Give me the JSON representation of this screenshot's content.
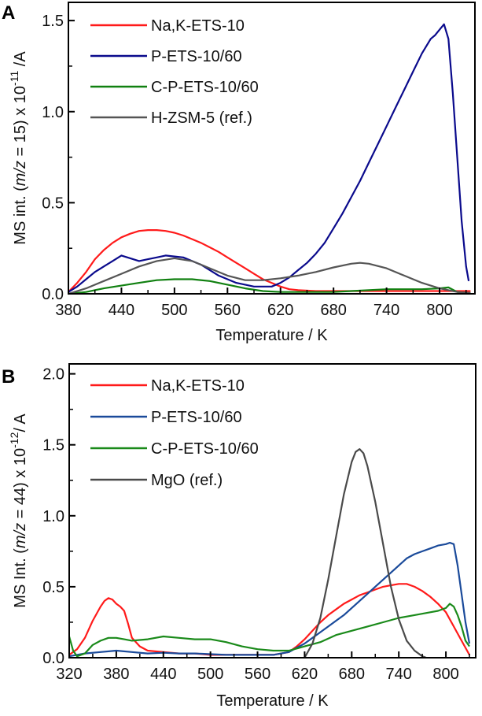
{
  "chart_data": [
    {
      "type": "line",
      "panel_label": "A",
      "xlabel": "Temperature / K",
      "ylabel_parts": [
        "MS int. (",
        "m/z",
        " = 15) x 10",
        "-11",
        " /A"
      ],
      "xlim": [
        380,
        840
      ],
      "ylim": [
        0,
        1.6
      ],
      "xticks": [
        380,
        440,
        500,
        560,
        620,
        680,
        740,
        800
      ],
      "xminor": [
        410,
        470,
        530,
        590,
        650,
        710,
        770,
        830
      ],
      "yticks": [
        0.0,
        0.5,
        1.0,
        1.5
      ],
      "ytick_labels": [
        "0.0",
        "0.5",
        "1.0",
        "1.5"
      ],
      "yminor": [
        0.25,
        0.75,
        1.25
      ],
      "legend_position": "top-left",
      "series": [
        {
          "name": "Na,K-ETS-10",
          "color": "#ff1a1a",
          "x": [
            380,
            390,
            400,
            410,
            420,
            430,
            440,
            450,
            460,
            470,
            480,
            490,
            500,
            510,
            520,
            530,
            540,
            550,
            560,
            570,
            580,
            590,
            600,
            610,
            620,
            630,
            640,
            660,
            680,
            700,
            720,
            740,
            760,
            780,
            800,
            820,
            835
          ],
          "y": [
            0.01,
            0.06,
            0.12,
            0.19,
            0.24,
            0.28,
            0.31,
            0.33,
            0.345,
            0.35,
            0.35,
            0.345,
            0.335,
            0.32,
            0.3,
            0.28,
            0.255,
            0.23,
            0.2,
            0.17,
            0.14,
            0.11,
            0.08,
            0.06,
            0.04,
            0.025,
            0.02,
            0.015,
            0.015,
            0.015,
            0.015,
            0.015,
            0.015,
            0.015,
            0.015,
            0.015,
            0.015
          ]
        },
        {
          "name": "P-ETS-10/60",
          "color": "#0a0a8c",
          "x": [
            380,
            390,
            400,
            410,
            420,
            430,
            440,
            450,
            460,
            470,
            480,
            490,
            500,
            510,
            520,
            530,
            540,
            550,
            560,
            570,
            580,
            590,
            600,
            610,
            620,
            630,
            640,
            650,
            660,
            670,
            680,
            690,
            700,
            710,
            720,
            730,
            740,
            750,
            760,
            770,
            780,
            790,
            795,
            800,
            805,
            810,
            815,
            820,
            825,
            830,
            833
          ],
          "y": [
            0.01,
            0.04,
            0.08,
            0.12,
            0.15,
            0.18,
            0.21,
            0.195,
            0.18,
            0.19,
            0.2,
            0.21,
            0.205,
            0.2,
            0.18,
            0.16,
            0.13,
            0.1,
            0.08,
            0.06,
            0.05,
            0.04,
            0.04,
            0.04,
            0.06,
            0.09,
            0.13,
            0.17,
            0.22,
            0.28,
            0.36,
            0.44,
            0.53,
            0.62,
            0.72,
            0.82,
            0.92,
            1.02,
            1.12,
            1.22,
            1.32,
            1.4,
            1.42,
            1.45,
            1.48,
            1.4,
            1.1,
            0.75,
            0.4,
            0.15,
            0.07
          ]
        },
        {
          "name": "C-P-ETS-10/60",
          "color": "#108010",
          "x": [
            380,
            400,
            420,
            440,
            460,
            480,
            500,
            520,
            540,
            560,
            580,
            600,
            620,
            640,
            660,
            680,
            700,
            720,
            740,
            760,
            780,
            800,
            810,
            820,
            835
          ],
          "y": [
            0.0,
            0.01,
            0.03,
            0.045,
            0.06,
            0.075,
            0.08,
            0.08,
            0.07,
            0.05,
            0.03,
            0.015,
            0.01,
            0.01,
            0.01,
            0.01,
            0.015,
            0.02,
            0.025,
            0.025,
            0.025,
            0.03,
            0.035,
            0.01,
            0.005
          ]
        },
        {
          "name": "H-ZSM-5 (ref.)",
          "color": "#555555",
          "x": [
            380,
            400,
            420,
            440,
            460,
            480,
            500,
            520,
            540,
            560,
            580,
            600,
            620,
            640,
            660,
            680,
            700,
            710,
            720,
            740,
            760,
            780,
            800,
            820,
            835
          ],
          "y": [
            0.0,
            0.03,
            0.07,
            0.11,
            0.15,
            0.18,
            0.195,
            0.18,
            0.14,
            0.1,
            0.075,
            0.075,
            0.085,
            0.1,
            0.12,
            0.145,
            0.165,
            0.17,
            0.165,
            0.14,
            0.1,
            0.06,
            0.03,
            0.01,
            0.005
          ]
        }
      ]
    },
    {
      "type": "line",
      "panel_label": "B",
      "xlabel": "Temperature / K",
      "ylabel_parts": [
        "MS Int. (",
        "m/z",
        " = 44) x 10",
        "-12",
        "/ A"
      ],
      "xlim": [
        320,
        838
      ],
      "ylim": [
        0,
        2.07
      ],
      "xticks": [
        320,
        380,
        440,
        500,
        560,
        620,
        680,
        740,
        800
      ],
      "xminor": [
        350,
        410,
        470,
        530,
        590,
        650,
        710,
        770,
        830
      ],
      "yticks": [
        0.0,
        0.5,
        1.0,
        1.5,
        2.0
      ],
      "ytick_labels": [
        "0.0",
        "0.5",
        "1.0",
        "1.5",
        "2.0"
      ],
      "yminor": [
        0.25,
        0.75,
        1.25,
        1.75
      ],
      "legend_position": "top-left",
      "series": [
        {
          "name": "Na,K-ETS-10",
          "color": "#ff1a1a",
          "x": [
            320,
            330,
            340,
            350,
            360,
            365,
            370,
            375,
            380,
            385,
            390,
            395,
            400,
            410,
            420,
            440,
            460,
            480,
            500,
            520,
            540,
            560,
            580,
            600,
            610,
            620,
            630,
            640,
            650,
            660,
            670,
            680,
            690,
            700,
            710,
            720,
            730,
            740,
            750,
            760,
            770,
            780,
            790,
            800,
            810,
            820,
            830
          ],
          "y": [
            0.02,
            0.06,
            0.14,
            0.26,
            0.36,
            0.4,
            0.42,
            0.41,
            0.38,
            0.36,
            0.33,
            0.24,
            0.14,
            0.08,
            0.05,
            0.04,
            0.03,
            0.03,
            0.02,
            0.02,
            0.02,
            0.02,
            0.02,
            0.04,
            0.08,
            0.13,
            0.19,
            0.25,
            0.3,
            0.34,
            0.38,
            0.41,
            0.44,
            0.46,
            0.48,
            0.5,
            0.51,
            0.52,
            0.52,
            0.5,
            0.47,
            0.43,
            0.38,
            0.32,
            0.22,
            0.12,
            0.02
          ]
        },
        {
          "name": "P-ETS-10/60",
          "color": "#1a4a9a",
          "x": [
            320,
            340,
            360,
            380,
            400,
            420,
            440,
            460,
            480,
            500,
            520,
            540,
            560,
            580,
            600,
            610,
            620,
            630,
            640,
            650,
            660,
            670,
            680,
            690,
            700,
            710,
            720,
            730,
            740,
            750,
            760,
            770,
            780,
            790,
            800,
            805,
            810,
            815,
            820,
            825,
            830
          ],
          "y": [
            0.01,
            0.03,
            0.04,
            0.05,
            0.04,
            0.03,
            0.035,
            0.03,
            0.03,
            0.025,
            0.02,
            0.02,
            0.02,
            0.02,
            0.04,
            0.07,
            0.1,
            0.14,
            0.18,
            0.22,
            0.26,
            0.3,
            0.35,
            0.4,
            0.45,
            0.5,
            0.55,
            0.6,
            0.65,
            0.7,
            0.73,
            0.75,
            0.77,
            0.79,
            0.8,
            0.81,
            0.8,
            0.65,
            0.45,
            0.25,
            0.1
          ]
        },
        {
          "name": "C-P-ETS-10/60",
          "color": "#1a8a1a",
          "x": [
            320,
            325,
            330,
            340,
            350,
            360,
            370,
            380,
            390,
            400,
            420,
            440,
            460,
            480,
            500,
            520,
            540,
            560,
            580,
            600,
            620,
            640,
            660,
            680,
            700,
            720,
            740,
            760,
            780,
            790,
            800,
            805,
            810,
            815,
            820,
            825,
            830
          ],
          "y": [
            0.15,
            0.05,
            0.01,
            0.03,
            0.09,
            0.12,
            0.14,
            0.14,
            0.13,
            0.12,
            0.13,
            0.15,
            0.14,
            0.13,
            0.13,
            0.11,
            0.08,
            0.06,
            0.05,
            0.05,
            0.08,
            0.11,
            0.16,
            0.19,
            0.22,
            0.25,
            0.28,
            0.3,
            0.32,
            0.33,
            0.35,
            0.38,
            0.36,
            0.3,
            0.22,
            0.12,
            0.08
          ]
        },
        {
          "name": "MgO (ref.)",
          "color": "#4a4a4a",
          "x": [
            620,
            630,
            640,
            650,
            660,
            670,
            680,
            685,
            690,
            695,
            700,
            710,
            720,
            730,
            740,
            750,
            760,
            770,
            775
          ],
          "y": [
            0.0,
            0.1,
            0.28,
            0.55,
            0.85,
            1.15,
            1.38,
            1.45,
            1.47,
            1.44,
            1.35,
            1.1,
            0.8,
            0.5,
            0.27,
            0.12,
            0.05,
            0.01,
            0.0
          ]
        }
      ]
    }
  ]
}
